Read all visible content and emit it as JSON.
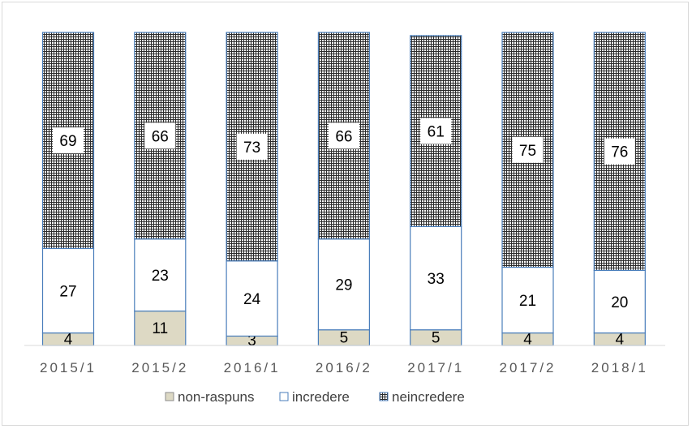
{
  "chart_data": {
    "type": "bar",
    "stacked": true,
    "percent": true,
    "categories": [
      "2015/1",
      "2015/2",
      "2016/1",
      "2016/2",
      "2017/1",
      "2017/2",
      "2018/1"
    ],
    "series": [
      {
        "name": "non-raspuns",
        "values": [
          4,
          11,
          3,
          5,
          5,
          4,
          4
        ],
        "color": "#ddd9c4"
      },
      {
        "name": "incredere",
        "values": [
          27,
          23,
          24,
          29,
          33,
          21,
          20
        ],
        "color": "#ffffff"
      },
      {
        "name": "neincredere",
        "values": [
          69,
          66,
          73,
          66,
          61,
          75,
          76
        ],
        "color": "#e8e8e8"
      }
    ],
    "bar_border_color": "#4a7ebb",
    "ylim": [
      0,
      100
    ],
    "grid": false,
    "legend_position": "bottom"
  }
}
